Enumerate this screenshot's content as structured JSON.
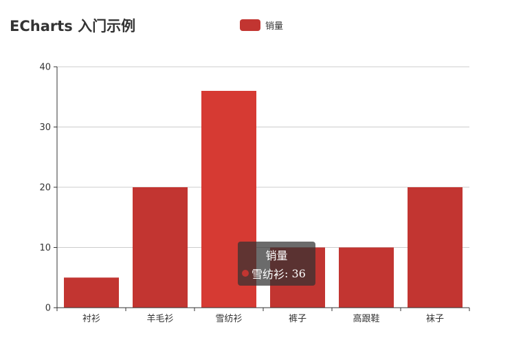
{
  "chart_data": {
    "type": "bar",
    "title": "ECharts 入门示例",
    "categories": [
      "衬衫",
      "羊毛衫",
      "雪纺衫",
      "裤子",
      "高跟鞋",
      "袜子"
    ],
    "series": [
      {
        "name": "销量",
        "values": [
          5,
          20,
          36,
          10,
          10,
          20
        ],
        "color": "#c23531"
      }
    ],
    "ylim": [
      0,
      40
    ],
    "yticks": [
      0,
      10,
      20,
      30,
      40
    ],
    "grid": true,
    "legend": "top-center",
    "highlight_color": "#d63a33",
    "tooltip": {
      "series": "销量",
      "category": "雪纺衫",
      "value": 36
    }
  }
}
